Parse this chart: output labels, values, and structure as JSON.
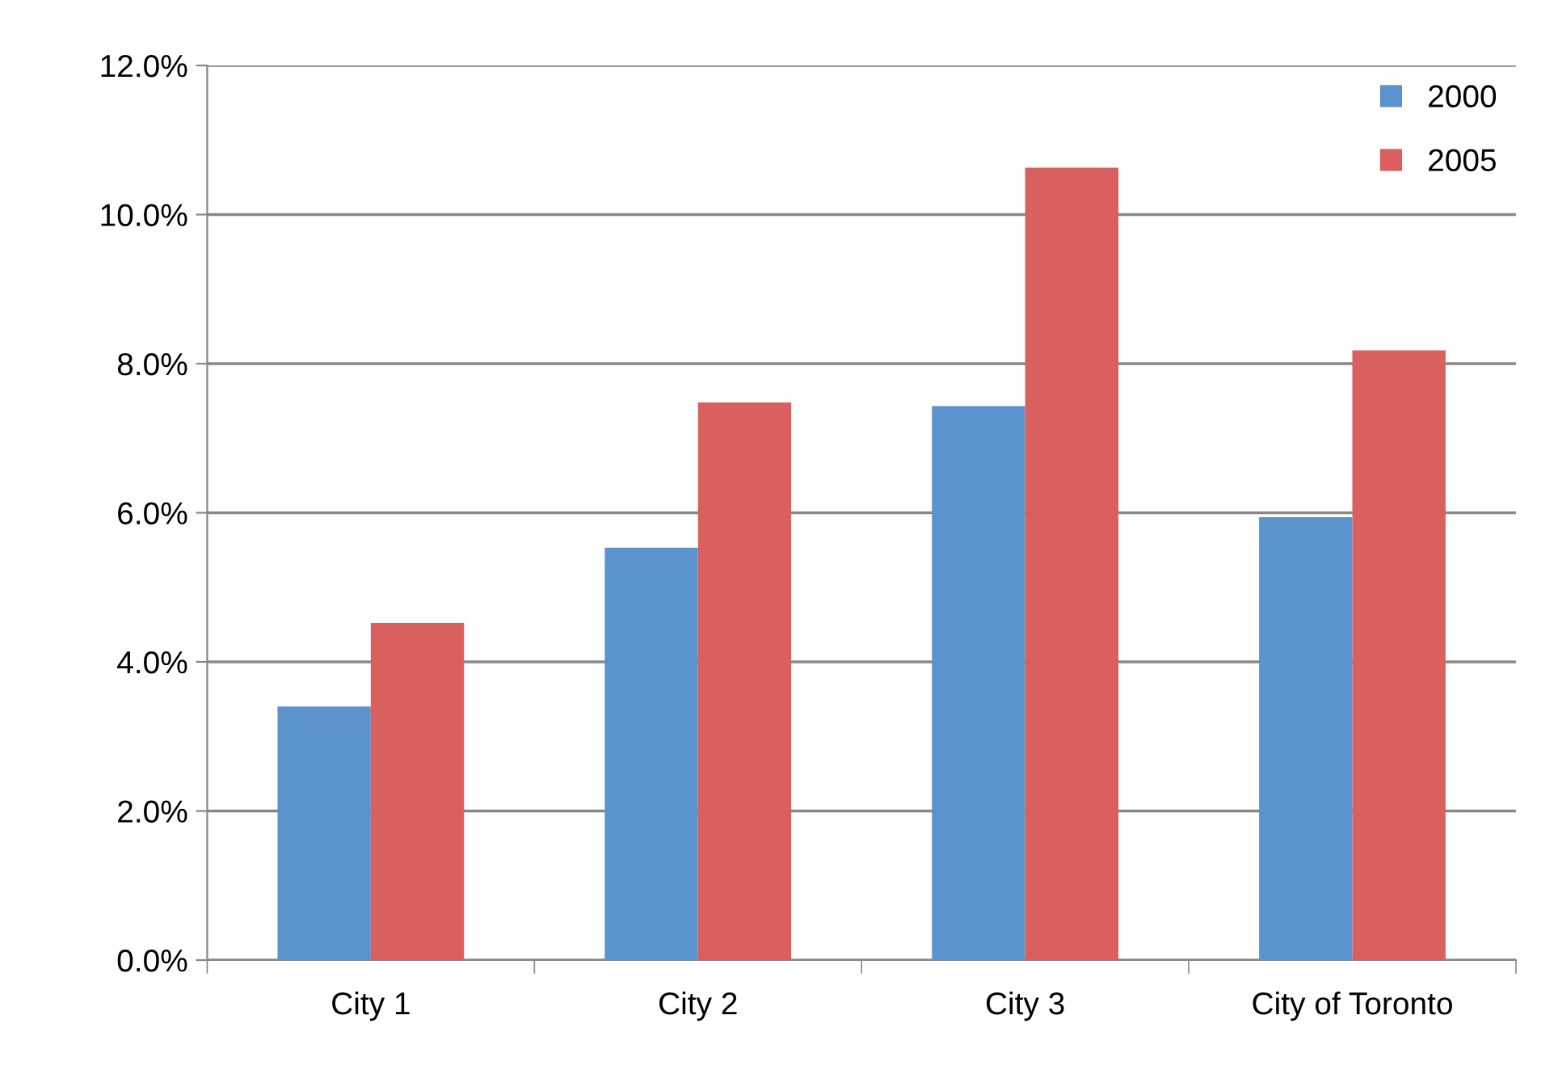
{
  "chart_data": {
    "type": "bar",
    "categories": [
      "City 1",
      "City 2",
      "City 3",
      "City of Toronto"
    ],
    "series": [
      {
        "name": "2000",
        "color": "#5b93cf",
        "values": [
          3.4,
          5.53,
          7.43,
          5.94
        ]
      },
      {
        "name": "2005",
        "color": "#d9605e",
        "values": [
          4.52,
          7.48,
          10.63,
          8.18
        ]
      }
    ],
    "ylim": [
      0,
      12
    ],
    "yticks": [
      {
        "value": 0,
        "label": "0.0%"
      },
      {
        "value": 2,
        "label": "2.0%"
      },
      {
        "value": 4,
        "label": "4.0%"
      },
      {
        "value": 6,
        "label": "6.0%"
      },
      {
        "value": 8,
        "label": "8.0%"
      },
      {
        "value": 10,
        "label": "10.0%"
      },
      {
        "value": 12,
        "label": "12.0%"
      }
    ],
    "grid": "y",
    "legend": "top right"
  }
}
